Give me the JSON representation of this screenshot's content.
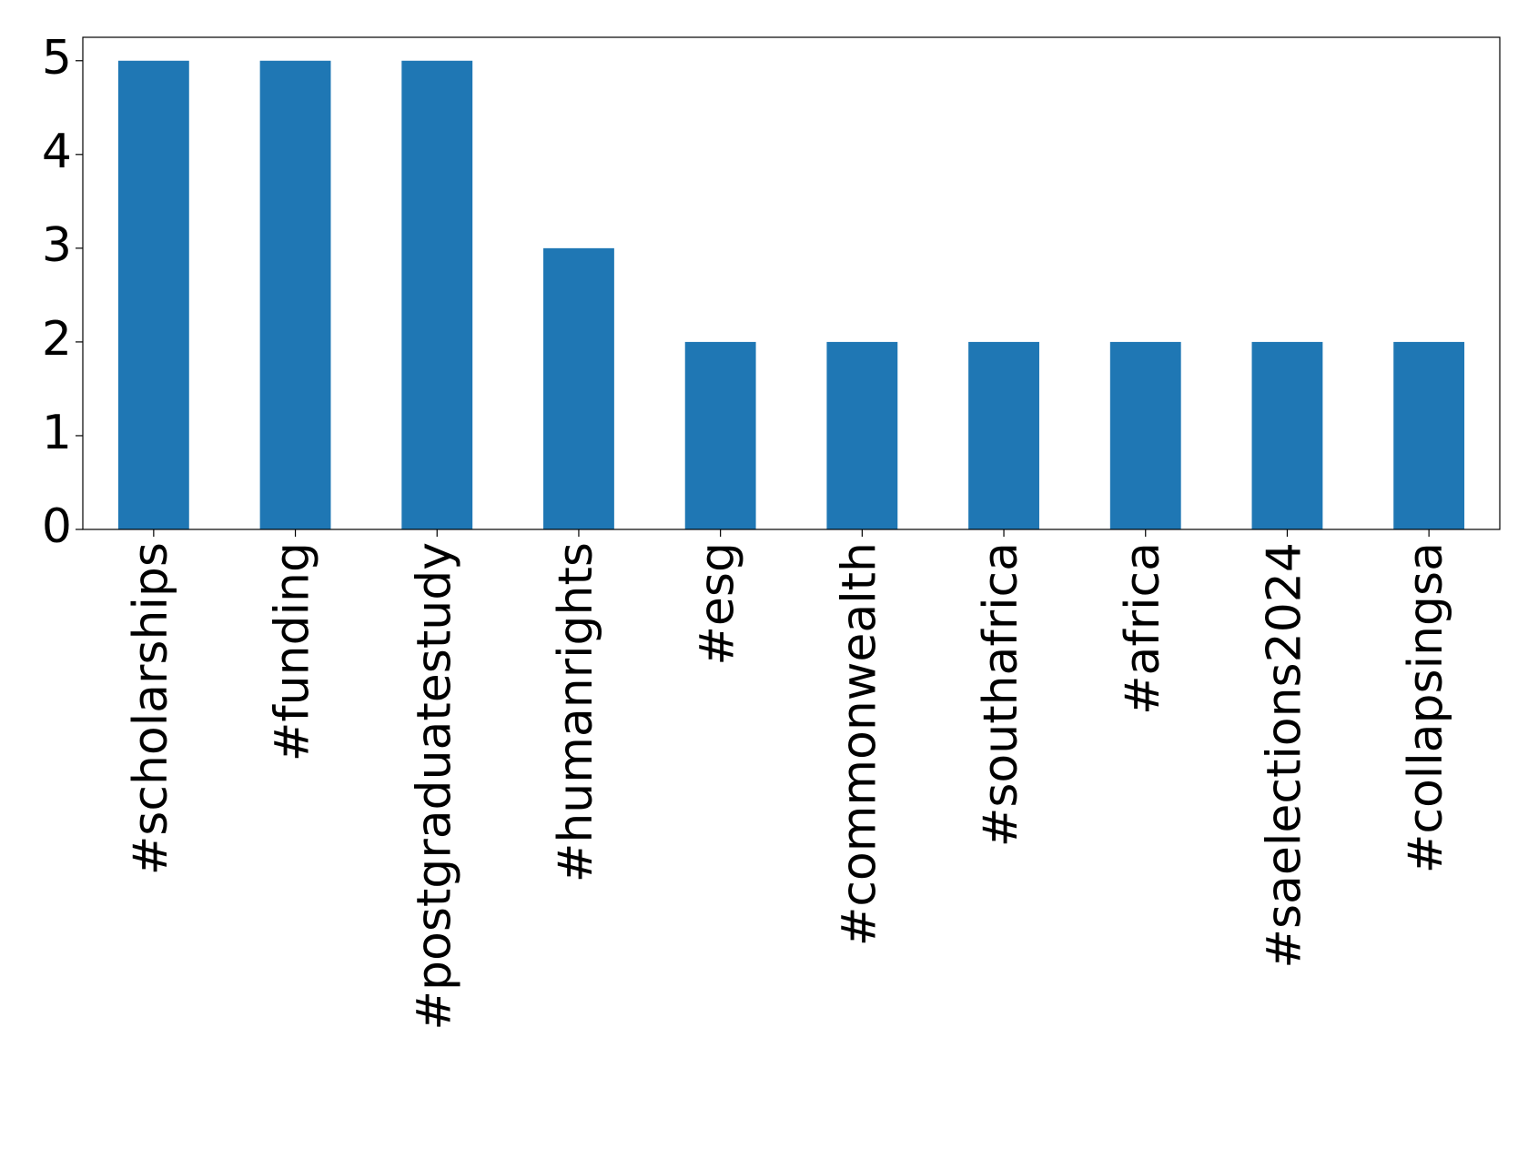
{
  "chart_data": {
    "type": "bar",
    "categories": [
      "#scholarships",
      "#funding",
      "#postgraduatestudy",
      "#humanrights",
      "#esg",
      "#commonwealth",
      "#southafrica",
      "#africa",
      "#saelections2024",
      "#collapsingsa"
    ],
    "values": [
      5,
      5,
      5,
      3,
      2,
      2,
      2,
      2,
      2,
      2
    ],
    "color": "#1f77b4",
    "ylim": [
      0,
      5.25
    ],
    "yticks": [
      0,
      1,
      2,
      3,
      4,
      5
    ],
    "grid": false
  }
}
